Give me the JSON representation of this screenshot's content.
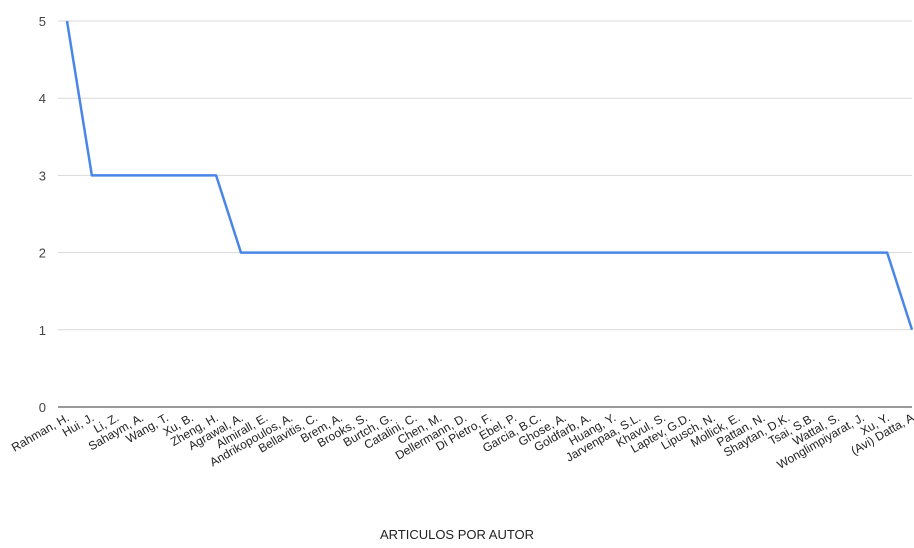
{
  "chart_data": {
    "type": "line",
    "title": "",
    "xlabel": "ARTICULOS POR AUTOR",
    "ylabel": "",
    "ylim": [
      0,
      5
    ],
    "yticks": [
      0,
      1,
      2,
      3,
      4,
      5
    ],
    "grid": true,
    "legend": "none",
    "line_color": "#4a86e8",
    "categories": [
      "Rahman, H.",
      "Hui, J.",
      "Li, Z.",
      "Sahaym, A.",
      "Wang, T.",
      "Xu, B.",
      "Zheng, H.",
      "Agrawal, A.",
      "Almirall, E.",
      "Andrikopoulos, A.",
      "Bellavitis, C.",
      "Brem, A.",
      "Brooks, S.",
      "Burtch, G.",
      "Catalini, C.",
      "Chen, M.",
      "Dellermann, D.",
      "Di Pietro, F.",
      "Ebel, P.",
      "Garcia, B.C.",
      "Ghose, A.",
      "Goldfarb, A.",
      "Huang, Y.",
      "Jarvenpaa, S.L.",
      "Khavul, S.",
      "Laptev, G.D.",
      "Lipusch, N.",
      "Mollick, E.",
      "Pattan, N.",
      "Shaytan, D.K.",
      "Tsai, S.B.",
      "Wattal, S.",
      "Wonglimpiyarat, J.",
      "Xu, Y.",
      "(Avi) Datta, A"
    ],
    "values": [
      5,
      3,
      3,
      3,
      3,
      3,
      3,
      2,
      2,
      2,
      2,
      2,
      2,
      2,
      2,
      2,
      2,
      2,
      2,
      2,
      2,
      2,
      2,
      2,
      2,
      2,
      2,
      2,
      2,
      2,
      2,
      2,
      2,
      2,
      1
    ]
  }
}
